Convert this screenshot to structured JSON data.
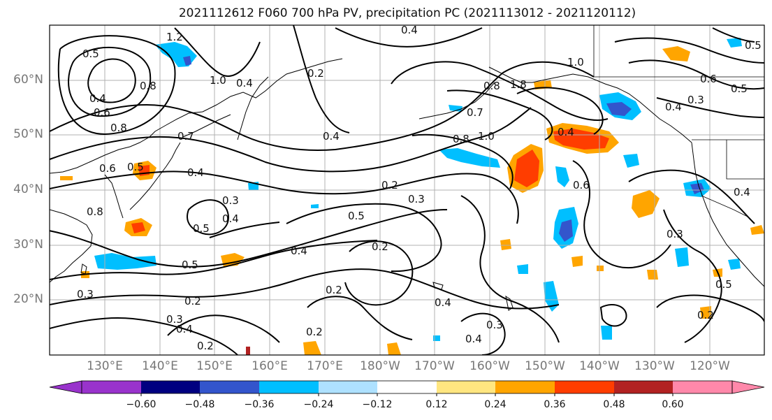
{
  "title": "2021112612 F060 700 hPa PV, precipitation PC (2021113012 - 2021120112)",
  "lat_labels": [
    "60°N",
    "50°N",
    "40°N",
    "30°N",
    "20°N"
  ],
  "lon_labels": [
    "130°E",
    "140°E",
    "150°E",
    "160°E",
    "170°E",
    "180°W",
    "170°W",
    "160°W",
    "150°W",
    "140°W",
    "130°W",
    "120°W"
  ],
  "colorbar": {
    "colors": [
      "#9933cc",
      "#000080",
      "#3355cc",
      "#00bfff",
      "#aee1ff",
      "#ffffff",
      "#ffe680",
      "#ffa500",
      "#ff3d00",
      "#b22222",
      "#ff88aa"
    ],
    "tick_labels": [
      "−0.60",
      "−0.48",
      "−0.36",
      "−0.24",
      "−0.12",
      "0.12",
      "0.24",
      "0.36",
      "0.48",
      "0.60"
    ],
    "extend": "both"
  },
  "contour_labels": [
    "0.5",
    "0.4",
    "0.6",
    "0.8",
    "1.2",
    "0.8",
    "0.7",
    "0.6",
    "0.5",
    "0.4",
    "0.8",
    "1.0",
    "0.4",
    "0.2",
    "0.4",
    "0.3",
    "0.5",
    "0.4",
    "0.2",
    "0.3",
    "0.5",
    "0.4",
    "0.5",
    "0.2",
    "0.4",
    "0.2",
    "0.2",
    "0.3",
    "0.4",
    "0.2",
    "0.2",
    "0.3",
    "0.4",
    "0.8",
    "1.8",
    "0.7",
    "0.8",
    "1.0",
    "0.4",
    "0.6",
    "1.0",
    "0.6",
    "0.3",
    "0.5",
    "0.4",
    "0.4",
    "0.3",
    "0.5",
    "0.2",
    "0.4",
    "0.5",
    "0.3"
  ]
}
